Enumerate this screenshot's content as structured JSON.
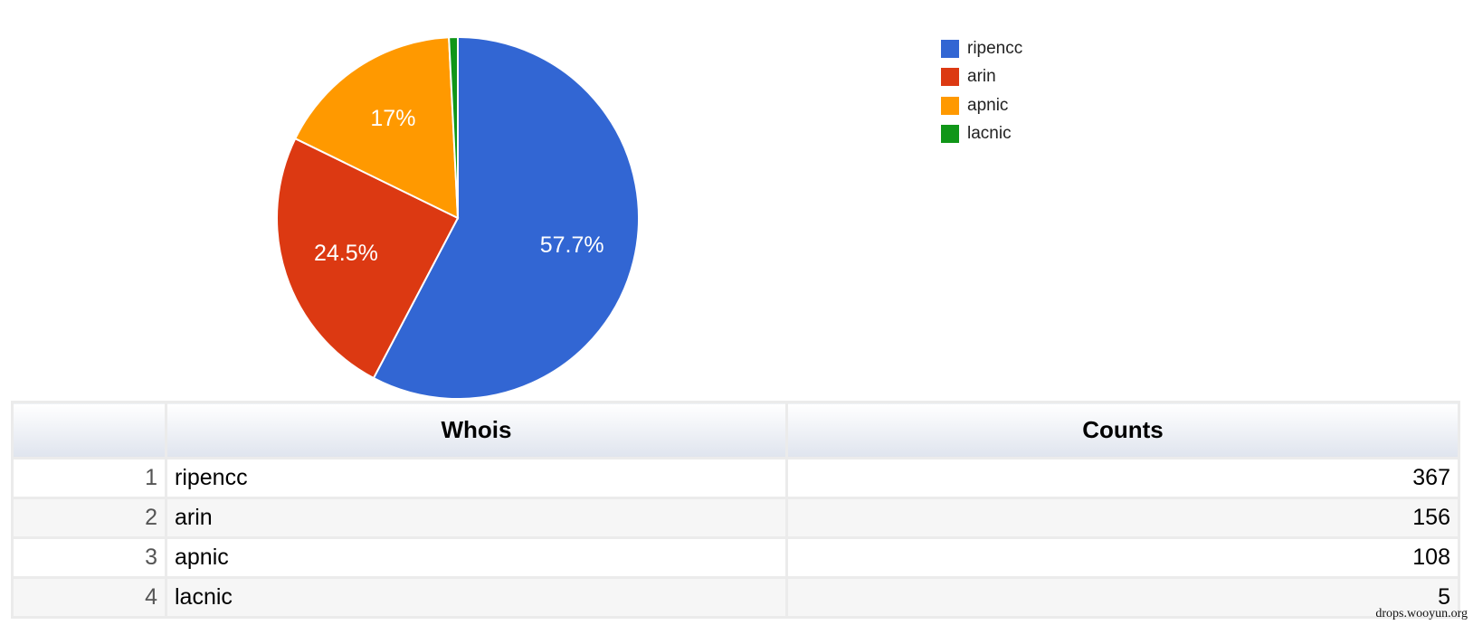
{
  "chart_data": {
    "type": "pie",
    "slices": [
      {
        "label": "ripencc",
        "value": 367,
        "percent_label": "57.7%",
        "color": "#3266d3"
      },
      {
        "label": "arin",
        "value": 156,
        "percent_label": "24.5%",
        "color": "#dc3912"
      },
      {
        "label": "apnic",
        "value": 108,
        "percent_label": "17%",
        "color": "#ff9900"
      },
      {
        "label": "lacnic",
        "value": 5,
        "percent_label": "",
        "color": "#109618"
      }
    ],
    "legend_position": "right",
    "start_angle": "top, clockwise"
  },
  "table": {
    "columns": [
      "",
      "Whois",
      "Counts"
    ],
    "rows": [
      {
        "index": "1",
        "whois": "ripencc",
        "count": "367"
      },
      {
        "index": "2",
        "whois": "arin",
        "count": "156"
      },
      {
        "index": "3",
        "whois": "apnic",
        "count": "108"
      },
      {
        "index": "4",
        "whois": "lacnic",
        "count": "5"
      }
    ]
  },
  "watermark": "drops.wooyun.org"
}
